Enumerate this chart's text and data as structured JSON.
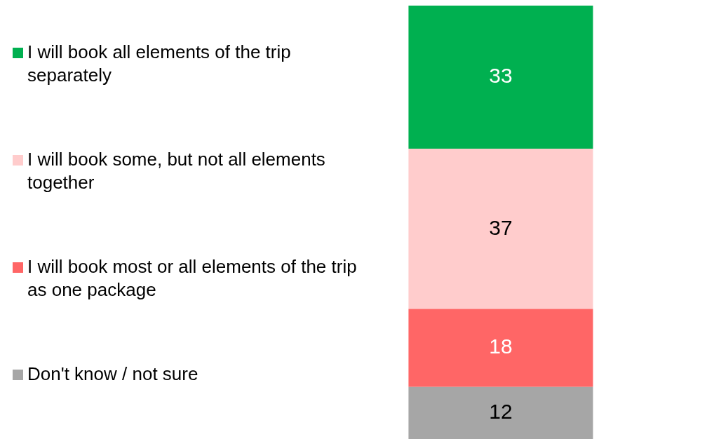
{
  "chart_data": {
    "type": "bar",
    "stacked": true,
    "categories": [
      null
    ],
    "data_labels": true,
    "legend": "left",
    "series": [
      {
        "name": "Don't know / not sure",
        "color": "#a6a6a6",
        "values": [
          12
        ]
      },
      {
        "name": "I will book most or all elements of the trip as one package",
        "color": "#ff6666",
        "values": [
          18
        ]
      },
      {
        "name": "I will book some, but not all elements together",
        "color": "#ffcccc",
        "values": [
          37
        ]
      },
      {
        "name": "I will book all elements of the trip separately",
        "color": "#00b050",
        "values": [
          33
        ]
      }
    ]
  }
}
